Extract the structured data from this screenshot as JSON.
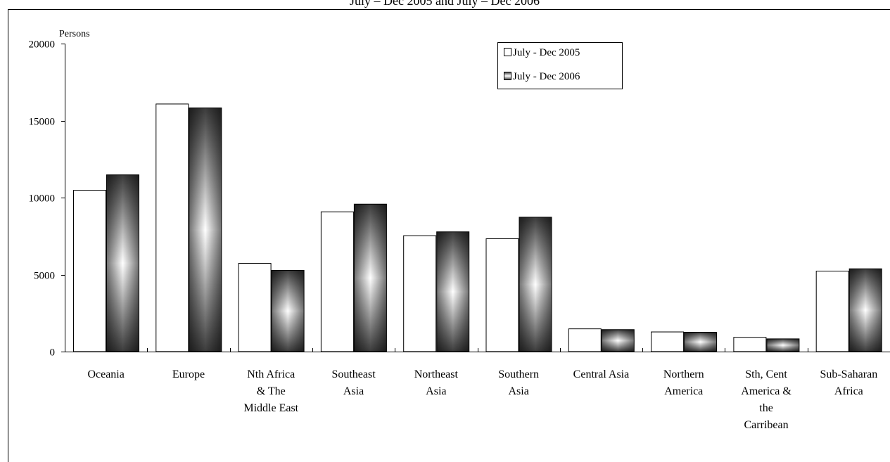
{
  "chart_data": {
    "type": "bar",
    "title": "July – Dec 2005 and July – Dec 2006",
    "ylabel": "Persons",
    "xlabel": "",
    "ylim": [
      0,
      20000
    ],
    "yticks": [
      0,
      5000,
      10000,
      15000,
      20000
    ],
    "grid": false,
    "legend_position": "top-right",
    "categories": [
      [
        "Oceania"
      ],
      [
        "Europe"
      ],
      [
        "Nth Africa",
        "& The",
        "Middle East"
      ],
      [
        "Southeast",
        "Asia"
      ],
      [
        "Northeast",
        "Asia"
      ],
      [
        "Southern",
        "Asia"
      ],
      [
        "Central Asia"
      ],
      [
        "Northern",
        "America"
      ],
      [
        "Sth, Cent",
        "America &",
        "the",
        "Carribean"
      ],
      [
        "Sub-Saharan",
        "Africa"
      ]
    ],
    "series": [
      {
        "name": "July - Dec 2005",
        "color": "#ffffff",
        "values": [
          10500,
          16100,
          5750,
          9100,
          7550,
          7350,
          1500,
          1300,
          950,
          5250
        ]
      },
      {
        "name": "July - Dec 2006",
        "color": "#3a3a3a",
        "values": [
          11500,
          15850,
          5300,
          9600,
          7800,
          8750,
          1450,
          1280,
          850,
          5400
        ]
      }
    ]
  }
}
